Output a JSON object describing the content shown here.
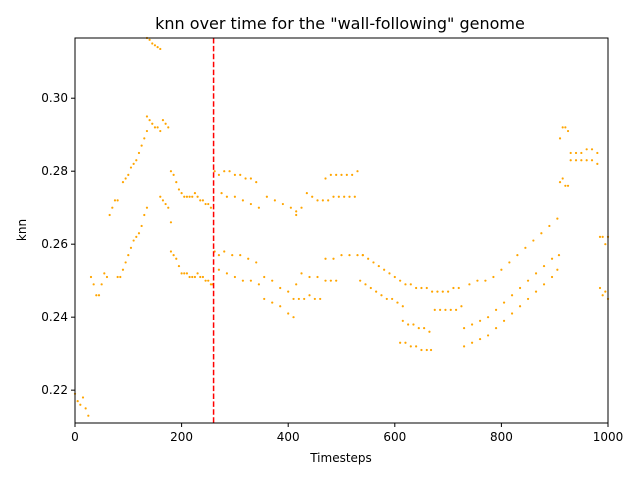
{
  "chart_data": {
    "type": "scatter",
    "title": "knn over time for the \"wall-following\" genome",
    "xlabel": "Timesteps",
    "ylabel": "knn",
    "xlim": [
      0,
      1000
    ],
    "ylim": [
      0.211,
      0.3165
    ],
    "xticks": [
      0,
      200,
      400,
      600,
      800,
      1000
    ],
    "yticks": [
      0.22,
      0.24,
      0.26,
      0.28,
      0.3
    ],
    "ytick_labels": [
      "0.22",
      "0.24",
      "0.26",
      "0.28",
      "0.30"
    ],
    "grid": false,
    "point_color": "#ffa500",
    "vline": {
      "x": 260,
      "color": "#ff0000",
      "style": "dashed"
    },
    "series": [
      {
        "x": [
          0,
          5,
          10,
          15,
          20,
          25
        ],
        "y": [
          0.219,
          0.217,
          0.216,
          0.218,
          0.215,
          0.213
        ]
      },
      {
        "x": [
          30,
          35,
          40,
          45,
          50,
          55,
          60
        ],
        "y": [
          0.251,
          0.249,
          0.246,
          0.246,
          0.249,
          0.252,
          0.251
        ]
      },
      {
        "x": [
          65,
          70,
          75,
          80
        ],
        "y": [
          0.268,
          0.27,
          0.272,
          0.272
        ]
      },
      {
        "x": [
          80,
          85,
          90,
          95,
          100
        ],
        "y": [
          0.251,
          0.251,
          0.253,
          0.255,
          0.257
        ]
      },
      {
        "x": [
          90,
          95,
          100,
          105,
          110,
          115,
          120,
          125,
          130,
          135
        ],
        "y": [
          0.277,
          0.278,
          0.279,
          0.281,
          0.282,
          0.283,
          0.285,
          0.287,
          0.289,
          0.291
        ]
      },
      {
        "x": [
          105,
          110,
          115,
          120,
          125,
          130,
          135
        ],
        "y": [
          0.259,
          0.261,
          0.262,
          0.263,
          0.265,
          0.268,
          0.27
        ]
      },
      {
        "x": [
          135,
          140,
          145,
          150,
          155,
          160
        ],
        "y": [
          0.3165,
          0.316,
          0.315,
          0.3145,
          0.314,
          0.3135
        ]
      },
      {
        "x": [
          135,
          140,
          145,
          150,
          155,
          160,
          165,
          170,
          175
        ],
        "y": [
          0.295,
          0.294,
          0.293,
          0.292,
          0.292,
          0.291,
          0.294,
          0.293,
          0.292
        ]
      },
      {
        "x": [
          160,
          165,
          170,
          175,
          180
        ],
        "y": [
          0.273,
          0.272,
          0.271,
          0.27,
          0.266
        ]
      },
      {
        "x": [
          180,
          185,
          190,
          195,
          200,
          205,
          210,
          215,
          220,
          225,
          230,
          235,
          240,
          245,
          250,
          255
        ],
        "y": [
          0.28,
          0.279,
          0.277,
          0.275,
          0.274,
          0.273,
          0.273,
          0.273,
          0.273,
          0.274,
          0.273,
          0.272,
          0.272,
          0.271,
          0.271,
          0.27
        ]
      },
      {
        "x": [
          180,
          185,
          190,
          195,
          200,
          205,
          210,
          215,
          220,
          225,
          230,
          235,
          240,
          245,
          250,
          255,
          258
        ],
        "y": [
          0.258,
          0.257,
          0.256,
          0.254,
          0.252,
          0.252,
          0.252,
          0.251,
          0.251,
          0.251,
          0.252,
          0.251,
          0.251,
          0.25,
          0.25,
          0.249,
          0.249
        ]
      },
      {
        "x": [
          262,
          270,
          280,
          290,
          300,
          310,
          320,
          330,
          340
        ],
        "y": [
          0.28,
          0.279,
          0.28,
          0.28,
          0.279,
          0.279,
          0.278,
          0.278,
          0.277
        ]
      },
      {
        "x": [
          275,
          285,
          300,
          315,
          330,
          345,
          360,
          375,
          390,
          405,
          415
        ],
        "y": [
          0.274,
          0.273,
          0.273,
          0.272,
          0.271,
          0.27,
          0.273,
          0.272,
          0.271,
          0.27,
          0.269
        ]
      },
      {
        "x": [
          262,
          270,
          280,
          295,
          310,
          325,
          340,
          355,
          370,
          385,
          400,
          410
        ],
        "y": [
          0.258,
          0.257,
          0.258,
          0.257,
          0.257,
          0.256,
          0.255,
          0.251,
          0.25,
          0.248,
          0.247,
          0.245
        ]
      },
      {
        "x": [
          270,
          285,
          300,
          315,
          330,
          345,
          355,
          370,
          385,
          400,
          410
        ],
        "y": [
          0.253,
          0.252,
          0.251,
          0.25,
          0.25,
          0.249,
          0.245,
          0.244,
          0.243,
          0.241,
          0.24
        ]
      },
      {
        "x": [
          415,
          425,
          435,
          445,
          455,
          465,
          475,
          485,
          495,
          505,
          515,
          525
        ],
        "y": [
          0.268,
          0.27,
          0.274,
          0.273,
          0.272,
          0.272,
          0.272,
          0.273,
          0.273,
          0.273,
          0.273,
          0.273
        ]
      },
      {
        "x": [
          470,
          480,
          490,
          500,
          510,
          520,
          530
        ],
        "y": [
          0.278,
          0.279,
          0.279,
          0.279,
          0.279,
          0.279,
          0.28
        ]
      },
      {
        "x": [
          415,
          425,
          440,
          455,
          470,
          485,
          500,
          515,
          530,
          540
        ],
        "y": [
          0.249,
          0.252,
          0.251,
          0.251,
          0.256,
          0.256,
          0.257,
          0.257,
          0.257,
          0.257
        ]
      },
      {
        "x": [
          420,
          430,
          440,
          450,
          460,
          470,
          480,
          490
        ],
        "y": [
          0.245,
          0.245,
          0.246,
          0.245,
          0.245,
          0.25,
          0.25,
          0.25
        ]
      },
      {
        "x": [
          540,
          550,
          560,
          570,
          580,
          590,
          600,
          610,
          620,
          630,
          640,
          650,
          660,
          670,
          680,
          690,
          700,
          710,
          720
        ],
        "y": [
          0.257,
          0.256,
          0.255,
          0.254,
          0.253,
          0.252,
          0.251,
          0.25,
          0.249,
          0.249,
          0.248,
          0.248,
          0.248,
          0.247,
          0.247,
          0.247,
          0.247,
          0.248,
          0.248
        ]
      },
      {
        "x": [
          535,
          545,
          555,
          565,
          575,
          585,
          595,
          605,
          615
        ],
        "y": [
          0.25,
          0.249,
          0.248,
          0.247,
          0.246,
          0.245,
          0.245,
          0.244,
          0.243
        ]
      },
      {
        "x": [
          615,
          625,
          635,
          645,
          655,
          665,
          675,
          685,
          695,
          705,
          715,
          725
        ],
        "y": [
          0.239,
          0.238,
          0.238,
          0.237,
          0.237,
          0.236,
          0.242,
          0.242,
          0.242,
          0.242,
          0.242,
          0.243
        ]
      },
      {
        "x": [
          610,
          620,
          630,
          640,
          650,
          660,
          668
        ],
        "y": [
          0.233,
          0.233,
          0.232,
          0.232,
          0.231,
          0.231,
          0.231
        ]
      },
      {
        "x": [
          730,
          745,
          760,
          775,
          790,
          805,
          820,
          835,
          850,
          865,
          880,
          895,
          908
        ],
        "y": [
          0.237,
          0.238,
          0.239,
          0.24,
          0.242,
          0.244,
          0.246,
          0.248,
          0.25,
          0.252,
          0.254,
          0.256,
          0.257
        ]
      },
      {
        "x": [
          740,
          755,
          770,
          785,
          800,
          815,
          830,
          845,
          860,
          875,
          890,
          905
        ],
        "y": [
          0.249,
          0.25,
          0.25,
          0.251,
          0.253,
          0.255,
          0.257,
          0.259,
          0.261,
          0.263,
          0.265,
          0.267
        ]
      },
      {
        "x": [
          730,
          745,
          760,
          775,
          790,
          805,
          820,
          835,
          850,
          865,
          880,
          895,
          905
        ],
        "y": [
          0.232,
          0.233,
          0.234,
          0.235,
          0.237,
          0.239,
          0.241,
          0.243,
          0.245,
          0.247,
          0.249,
          0.251,
          0.253
        ]
      },
      {
        "x": [
          910,
          915,
          920,
          925
        ],
        "y": [
          0.277,
          0.278,
          0.276,
          0.276
        ]
      },
      {
        "x": [
          910,
          915,
          920,
          925
        ],
        "y": [
          0.289,
          0.292,
          0.292,
          0.291
        ]
      },
      {
        "x": [
          930,
          940,
          950,
          960,
          970,
          980
        ],
        "y": [
          0.285,
          0.285,
          0.285,
          0.286,
          0.286,
          0.285
        ]
      },
      {
        "x": [
          930,
          940,
          950,
          960,
          970,
          980
        ],
        "y": [
          0.283,
          0.283,
          0.283,
          0.283,
          0.283,
          0.282
        ]
      },
      {
        "x": [
          985,
          990,
          995,
          1000
        ],
        "y": [
          0.262,
          0.262,
          0.26,
          0.262
        ]
      },
      {
        "x": [
          985,
          990,
          995,
          1000
        ],
        "y": [
          0.248,
          0.246,
          0.247,
          0.245
        ]
      }
    ]
  }
}
